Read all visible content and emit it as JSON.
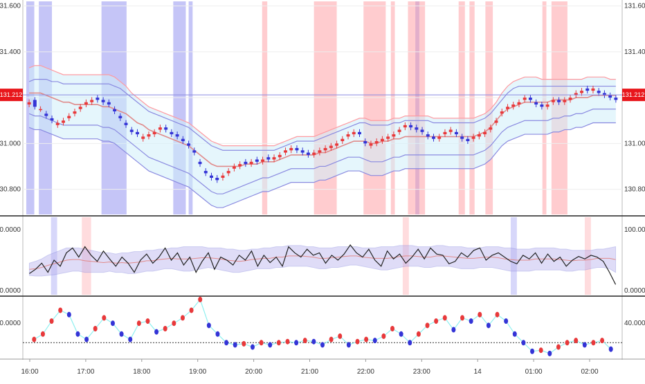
{
  "colors": {
    "up": "#e8393b",
    "down": "#3434d6",
    "band_outer": "#8a8ae0",
    "band_inner": "#e08a8a",
    "band_fill": "#cfeefa",
    "highlight_red": "#ff9aa0",
    "highlight_blue": "#8c8cf0",
    "osc_line": "#222222",
    "osc_band": "#b9b2ee",
    "osc_mid": "#e08a8a",
    "dots_line": "#8ff0f0",
    "price_tag": "#e8161b",
    "axis_text": "#333333",
    "grid": "#eeeeee",
    "separator": "#222222"
  },
  "chart_data": [
    {
      "type": "candlestick",
      "title": "",
      "x_ticks": [
        "16:00",
        "17:00",
        "18:00",
        "19:00",
        "20:00",
        "21:00",
        "22:00",
        "23:00",
        "14",
        "01:00",
        "02:00"
      ],
      "y_ticks": [
        "131.600",
        "131.400",
        "131.200",
        "131.000",
        "130.800"
      ],
      "ylim": [
        130.69,
        131.62
      ],
      "last_price": "131.212",
      "closes": [
        131.18,
        131.16,
        131.15,
        131.12,
        131.1,
        131.09,
        131.1,
        131.12,
        131.14,
        131.16,
        131.18,
        131.19,
        131.19,
        131.18,
        131.17,
        131.14,
        131.11,
        131.08,
        131.05,
        131.04,
        131.03,
        131.04,
        131.05,
        131.07,
        131.06,
        131.04,
        131.03,
        131.01,
        130.99,
        130.96,
        130.91,
        130.87,
        130.85,
        130.84,
        130.86,
        130.88,
        130.9,
        130.91,
        130.91,
        130.92,
        130.92,
        130.93,
        130.93,
        130.94,
        130.95,
        130.97,
        130.98,
        130.97,
        130.96,
        130.95,
        130.96,
        130.97,
        130.98,
        130.99,
        131.0,
        131.02,
        131.04,
        131.05,
        131.04,
        131.0,
        131.0,
        131.01,
        131.02,
        131.03,
        131.04,
        131.06,
        131.08,
        131.07,
        131.06,
        131.05,
        131.03,
        131.02,
        131.03,
        131.05,
        131.06,
        131.04,
        131.02,
        131.01,
        131.03,
        131.04,
        131.05,
        131.07,
        131.1,
        131.14,
        131.16,
        131.17,
        131.18,
        131.2,
        131.19,
        131.17,
        131.16,
        131.17,
        131.19,
        131.18,
        131.19,
        131.2,
        131.22,
        131.23,
        131.23,
        131.24,
        131.22,
        131.21,
        131.2,
        131.19
      ],
      "opens": [
        131.17,
        131.19,
        131.15,
        131.13,
        131.11,
        131.08,
        131.09,
        131.11,
        131.13,
        131.15,
        131.17,
        131.18,
        131.2,
        131.19,
        131.18,
        131.15,
        131.12,
        131.09,
        131.06,
        131.05,
        131.02,
        131.03,
        131.04,
        131.06,
        131.07,
        131.05,
        131.04,
        131.02,
        131.0,
        130.97,
        130.92,
        130.88,
        130.86,
        130.85,
        130.85,
        130.87,
        130.89,
        130.9,
        130.92,
        130.91,
        130.93,
        130.92,
        130.94,
        130.93,
        130.94,
        130.96,
        130.97,
        130.98,
        130.97,
        130.96,
        130.95,
        130.96,
        130.97,
        130.98,
        130.99,
        131.01,
        131.03,
        131.04,
        131.05,
        131.01,
        130.99,
        131.0,
        131.01,
        131.02,
        131.03,
        131.05,
        131.07,
        131.08,
        131.07,
        131.06,
        131.04,
        131.03,
        131.02,
        131.04,
        131.05,
        131.05,
        131.03,
        131.02,
        131.02,
        131.03,
        131.04,
        131.06,
        131.09,
        131.13,
        131.15,
        131.16,
        131.17,
        131.19,
        131.2,
        131.18,
        131.17,
        131.16,
        131.18,
        131.19,
        131.18,
        131.19,
        131.21,
        131.22,
        131.24,
        131.23,
        131.23,
        131.22,
        131.21,
        131.2
      ],
      "band_outer_upper": [
        131.33,
        131.34,
        131.34,
        131.33,
        131.32,
        131.31,
        131.3,
        131.3,
        131.3,
        131.3,
        131.3,
        131.3,
        131.3,
        131.3,
        131.3,
        131.29,
        131.27,
        131.25,
        131.22,
        131.2,
        131.18,
        131.16,
        131.15,
        131.14,
        131.13,
        131.12,
        131.11,
        131.1,
        131.09,
        131.07,
        131.05,
        131.03,
        131.01,
        131.0,
        130.99,
        130.99,
        130.99,
        130.99,
        130.99,
        130.99,
        130.99,
        130.99,
        130.99,
        130.99,
        131.0,
        131.01,
        131.02,
        131.03,
        131.03,
        131.03,
        131.03,
        131.04,
        131.05,
        131.06,
        131.07,
        131.08,
        131.09,
        131.1,
        131.11,
        131.11,
        131.1,
        131.1,
        131.1,
        131.1,
        131.11,
        131.11,
        131.12,
        131.12,
        131.12,
        131.12,
        131.12,
        131.11,
        131.11,
        131.11,
        131.11,
        131.11,
        131.11,
        131.11,
        131.11,
        131.12,
        131.13,
        131.15,
        131.18,
        131.22,
        131.25,
        131.27,
        131.28,
        131.29,
        131.29,
        131.29,
        131.28,
        131.28,
        131.28,
        131.28,
        131.28,
        131.28,
        131.28,
        131.28,
        131.29,
        131.29,
        131.29,
        131.29,
        131.28,
        131.28
      ],
      "band_inner_upper": [
        131.27,
        131.28,
        131.28,
        131.28,
        131.27,
        131.27,
        131.26,
        131.26,
        131.26,
        131.26,
        131.26,
        131.26,
        131.26,
        131.26,
        131.26,
        131.25,
        131.24,
        131.22,
        131.2,
        131.18,
        131.16,
        131.14,
        131.13,
        131.12,
        131.11,
        131.1,
        131.09,
        131.08,
        131.07,
        131.05,
        131.03,
        131.01,
        130.99,
        130.98,
        130.97,
        130.97,
        130.97,
        130.97,
        130.97,
        130.97,
        130.97,
        130.97,
        130.97,
        130.97,
        130.98,
        130.99,
        131.0,
        131.01,
        131.01,
        131.01,
        131.01,
        131.02,
        131.03,
        131.04,
        131.05,
        131.06,
        131.07,
        131.08,
        131.09,
        131.09,
        131.08,
        131.08,
        131.08,
        131.08,
        131.09,
        131.09,
        131.1,
        131.1,
        131.1,
        131.1,
        131.1,
        131.09,
        131.09,
        131.09,
        131.09,
        131.09,
        131.09,
        131.09,
        131.09,
        131.1,
        131.11,
        131.13,
        131.16,
        131.19,
        131.22,
        131.24,
        131.25,
        131.25,
        131.25,
        131.25,
        131.25,
        131.25,
        131.25,
        131.25,
        131.25,
        131.25,
        131.25,
        131.25,
        131.25,
        131.25,
        131.25,
        131.25,
        131.25,
        131.25
      ],
      "band_mid": [
        131.22,
        131.22,
        131.22,
        131.21,
        131.2,
        131.19,
        131.18,
        131.18,
        131.17,
        131.17,
        131.17,
        131.17,
        131.17,
        131.16,
        131.16,
        131.15,
        131.14,
        131.13,
        131.11,
        131.09,
        131.08,
        131.06,
        131.05,
        131.04,
        131.03,
        131.02,
        131.01,
        131.0,
        130.99,
        130.97,
        130.95,
        130.93,
        130.91,
        130.9,
        130.9,
        130.9,
        130.9,
        130.9,
        130.91,
        130.91,
        130.91,
        130.92,
        130.92,
        130.92,
        130.93,
        130.94,
        130.95,
        130.95,
        130.95,
        130.95,
        130.95,
        130.96,
        130.96,
        130.97,
        130.98,
        130.99,
        131.0,
        131.01,
        131.01,
        131.01,
        131.0,
        131.0,
        131.01,
        131.01,
        131.02,
        131.02,
        131.03,
        131.03,
        131.03,
        131.03,
        131.03,
        131.03,
        131.03,
        131.03,
        131.03,
        131.03,
        131.03,
        131.03,
        131.03,
        131.04,
        131.05,
        131.07,
        131.1,
        131.13,
        131.15,
        131.16,
        131.17,
        131.18,
        131.18,
        131.18,
        131.18,
        131.18,
        131.19,
        131.19,
        131.19,
        131.19,
        131.2,
        131.2,
        131.2,
        131.21,
        131.21,
        131.21,
        131.21,
        131.21
      ],
      "band_inner_lower": [
        131.13,
        131.12,
        131.12,
        131.11,
        131.1,
        131.09,
        131.08,
        131.08,
        131.08,
        131.08,
        131.08,
        131.08,
        131.08,
        131.07,
        131.07,
        131.06,
        131.04,
        131.02,
        131.0,
        130.98,
        130.96,
        130.94,
        130.93,
        130.92,
        130.91,
        130.9,
        130.89,
        130.88,
        130.87,
        130.85,
        130.83,
        130.81,
        130.79,
        130.78,
        130.78,
        130.79,
        130.8,
        130.81,
        130.82,
        130.83,
        130.84,
        130.85,
        130.85,
        130.86,
        130.87,
        130.88,
        130.89,
        130.89,
        130.89,
        130.89,
        130.89,
        130.9,
        130.9,
        130.91,
        130.92,
        130.93,
        130.94,
        130.94,
        130.94,
        130.93,
        130.92,
        130.92,
        130.92,
        130.93,
        130.94,
        130.94,
        130.95,
        130.95,
        130.95,
        130.95,
        130.95,
        130.95,
        130.95,
        130.95,
        130.95,
        130.95,
        130.95,
        130.95,
        130.95,
        130.96,
        130.97,
        130.99,
        131.02,
        131.05,
        131.07,
        131.08,
        131.09,
        131.1,
        131.1,
        131.1,
        131.1,
        131.1,
        131.11,
        131.11,
        131.12,
        131.12,
        131.13,
        131.13,
        131.14,
        131.15,
        131.15,
        131.15,
        131.15,
        131.15
      ],
      "band_outer_lower": [
        131.07,
        131.06,
        131.06,
        131.05,
        131.04,
        131.03,
        131.02,
        131.02,
        131.02,
        131.02,
        131.02,
        131.02,
        131.02,
        131.01,
        131.01,
        131.0,
        130.98,
        130.96,
        130.94,
        130.92,
        130.9,
        130.88,
        130.87,
        130.86,
        130.85,
        130.84,
        130.83,
        130.82,
        130.81,
        130.79,
        130.77,
        130.75,
        130.73,
        130.72,
        130.72,
        130.73,
        130.74,
        130.75,
        130.76,
        130.77,
        130.78,
        130.79,
        130.79,
        130.8,
        130.81,
        130.82,
        130.83,
        130.83,
        130.83,
        130.83,
        130.83,
        130.84,
        130.84,
        130.85,
        130.86,
        130.87,
        130.88,
        130.88,
        130.88,
        130.87,
        130.86,
        130.86,
        130.86,
        130.87,
        130.88,
        130.88,
        130.89,
        130.89,
        130.89,
        130.89,
        130.89,
        130.89,
        130.89,
        130.89,
        130.89,
        130.89,
        130.89,
        130.89,
        130.89,
        130.9,
        130.91,
        130.93,
        130.96,
        130.99,
        131.01,
        131.02,
        131.03,
        131.04,
        131.04,
        131.04,
        131.04,
        131.04,
        131.05,
        131.05,
        131.06,
        131.06,
        131.07,
        131.07,
        131.08,
        131.09,
        131.09,
        131.09,
        131.09,
        131.09
      ],
      "highlights": [
        {
          "from": 0.0,
          "to": 1.4,
          "color": "blue"
        },
        {
          "from": 2.2,
          "to": 4.5,
          "color": "blue"
        },
        {
          "from": 13.2,
          "to": 17.6,
          "color": "blue"
        },
        {
          "from": 25.8,
          "to": 28.0,
          "color": "blue"
        },
        {
          "from": 28.5,
          "to": 29.2,
          "color": "blue"
        },
        {
          "from": 41.4,
          "to": 42.3,
          "color": "red"
        },
        {
          "from": 50.5,
          "to": 54.5,
          "color": "red"
        },
        {
          "from": 59.2,
          "to": 63.1,
          "color": "red"
        },
        {
          "from": 64.0,
          "to": 64.7,
          "color": "red"
        },
        {
          "from": 68.3,
          "to": 69.0,
          "color": "blue"
        },
        {
          "from": 67.0,
          "to": 70.0,
          "color": "red"
        },
        {
          "from": 75.9,
          "to": 77.0,
          "color": "red"
        },
        {
          "from": 77.8,
          "to": 78.7,
          "color": "red"
        },
        {
          "from": 80.6,
          "to": 81.9,
          "color": "red"
        },
        {
          "from": 90.6,
          "to": 91.3,
          "color": "red"
        },
        {
          "from": 92.2,
          "to": 95.0,
          "color": "red"
        }
      ]
    },
    {
      "type": "line",
      "title": "",
      "y_ticks": [
        "100.0000",
        "0.0000"
      ],
      "ylim": [
        0,
        100
      ],
      "values": [
        28,
        35,
        45,
        30,
        50,
        40,
        62,
        70,
        55,
        72,
        58,
        48,
        65,
        52,
        40,
        55,
        45,
        30,
        50,
        60,
        45,
        55,
        70,
        50,
        62,
        42,
        55,
        30,
        48,
        62,
        35,
        55,
        50,
        42,
        58,
        50,
        65,
        40,
        58,
        46,
        55,
        40,
        72,
        62,
        55,
        68,
        58,
        62,
        45,
        58,
        50,
        60,
        75,
        62,
        55,
        68,
        50,
        40,
        65,
        52,
        60,
        45,
        55,
        68,
        52,
        70,
        60,
        58,
        44,
        48,
        62,
        55,
        66,
        70,
        50,
        58,
        62,
        55,
        48,
        44,
        58,
        52,
        62,
        45,
        60,
        48,
        55,
        40,
        50,
        56,
        52,
        58,
        55,
        48,
        30,
        10
      ],
      "band_upper": [
        45,
        48,
        52,
        58,
        62,
        66,
        70,
        70,
        70,
        68,
        66,
        64,
        62,
        62,
        60,
        62,
        62,
        64,
        64,
        66,
        66,
        68,
        68,
        70,
        70,
        72,
        72,
        72,
        72,
        70,
        70,
        70,
        68,
        68,
        66,
        66,
        68,
        68,
        70,
        70,
        72,
        72,
        74,
        74,
        74,
        72,
        72,
        70,
        70,
        70,
        72,
        72,
        72,
        72,
        70,
        70,
        70,
        72,
        72,
        72,
        74,
        74,
        74,
        72,
        72,
        72,
        74,
        74,
        72,
        72,
        72,
        70,
        70,
        70,
        72,
        72,
        72,
        70,
        70,
        68,
        68,
        68,
        70,
        70,
        70,
        70,
        68,
        68,
        66,
        66,
        66,
        66,
        68,
        68,
        70,
        72
      ],
      "band_lower": [
        25,
        24,
        24,
        25,
        26,
        28,
        30,
        32,
        32,
        30,
        30,
        30,
        30,
        32,
        30,
        30,
        28,
        28,
        30,
        32,
        32,
        34,
        36,
        36,
        34,
        32,
        32,
        34,
        36,
        38,
        36,
        34,
        32,
        30,
        30,
        32,
        34,
        36,
        36,
        36,
        38,
        38,
        40,
        40,
        40,
        40,
        38,
        36,
        36,
        38,
        38,
        40,
        42,
        42,
        40,
        38,
        36,
        34,
        34,
        36,
        38,
        40,
        40,
        40,
        38,
        38,
        40,
        40,
        40,
        38,
        36,
        36,
        36,
        38,
        38,
        38,
        36,
        34,
        32,
        32,
        32,
        32,
        34,
        34,
        34,
        34,
        34,
        32,
        32,
        34,
        34,
        36,
        38,
        38,
        36,
        30
      ],
      "highlights": [
        {
          "from": 4.0,
          "to": 5.0,
          "color": "blue"
        },
        {
          "from": 9.0,
          "to": 10.5,
          "color": "red"
        },
        {
          "from": 61.0,
          "to": 62.0,
          "color": "red"
        },
        {
          "from": 78.5,
          "to": 79.5,
          "color": "blue"
        },
        {
          "from": 90.5,
          "to": 91.5,
          "color": "red"
        }
      ]
    },
    {
      "type": "scatter",
      "title": "",
      "y_ticks": [
        "40.0000"
      ],
      "ylim": [
        10,
        60
      ],
      "baseline": 22,
      "values": [
        25,
        30,
        42,
        52,
        48,
        30,
        25,
        35,
        45,
        40,
        30,
        25,
        40,
        42,
        32,
        35,
        40,
        45,
        52,
        62,
        38,
        30,
        22,
        20,
        21,
        18,
        22,
        20,
        22,
        23,
        22,
        24,
        23,
        20,
        25,
        28,
        20,
        23,
        25,
        24,
        28,
        35,
        30,
        22,
        30,
        38,
        42,
        45,
        34,
        45,
        42,
        48,
        38,
        48,
        42,
        30,
        22,
        14,
        15,
        12,
        18,
        22,
        24,
        20,
        22,
        24,
        16
      ]
    }
  ]
}
